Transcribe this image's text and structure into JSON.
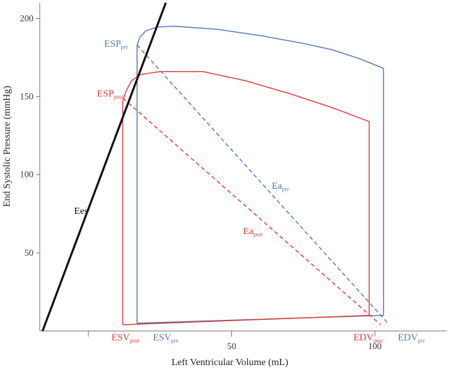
{
  "chart_data": {
    "type": "line",
    "title": "",
    "xlabel": "Left Ventricular Volume (mL)",
    "ylabel": "End Systolic Pressure (mmHg)",
    "xlim": [
      -17,
      125
    ],
    "ylim": [
      0,
      210
    ],
    "xticks": [
      0,
      50,
      100
    ],
    "xtick_labels": [
      "",
      "50",
      "100"
    ],
    "yticks": [
      50,
      100,
      150,
      200
    ],
    "ytick_labels": [
      "50",
      "100",
      "150",
      "200"
    ],
    "grid": false,
    "legend": "none",
    "colors": {
      "pre": "#5577b3",
      "post": "#dd3a3a",
      "ees": "#111111",
      "axis": "#777777"
    },
    "series": [
      {
        "name": "pre",
        "color": "#5577b3",
        "style": "solid",
        "points": [
          [
            17,
            5
          ],
          [
            17,
            183
          ],
          [
            18,
            188
          ],
          [
            20,
            192
          ],
          [
            24,
            194.5
          ],
          [
            30,
            195
          ],
          [
            45,
            193
          ],
          [
            60,
            189
          ],
          [
            75,
            184
          ],
          [
            85,
            180
          ],
          [
            95,
            174
          ],
          [
            103,
            168
          ],
          [
            103,
            166
          ],
          [
            103,
            10
          ],
          [
            17,
            5
          ]
        ]
      },
      {
        "name": "post",
        "color": "#dd3a3a",
        "style": "solid",
        "points": [
          [
            12,
            4
          ],
          [
            12,
            147
          ],
          [
            13,
            153
          ],
          [
            15,
            160
          ],
          [
            18,
            164
          ],
          [
            25,
            166
          ],
          [
            40,
            166
          ],
          [
            55,
            160
          ],
          [
            70,
            152
          ],
          [
            85,
            143
          ],
          [
            98,
            134
          ],
          [
            98,
            132
          ],
          [
            98,
            10
          ],
          [
            12,
            4
          ]
        ]
      },
      {
        "name": "Eapre",
        "color": "#5577b3",
        "style": "dashed",
        "points": [
          [
            17,
            183
          ],
          [
            105,
            4
          ]
        ]
      },
      {
        "name": "Eapost",
        "color": "#dd3a3a",
        "style": "dashed",
        "points": [
          [
            12,
            149
          ],
          [
            102,
            4
          ]
        ]
      },
      {
        "name": "Ees",
        "color": "#111111",
        "style": "solid",
        "points": [
          [
            -16,
            0
          ],
          [
            27,
            210
          ]
        ]
      }
    ],
    "annotations": [
      {
        "text": "ESP",
        "sub": "pre",
        "color": "#5577b3",
        "x": 5.5,
        "y": 182
      },
      {
        "text": "ESP",
        "sub": "post",
        "color": "#dd3a3a",
        "x": 3,
        "y": 150
      },
      {
        "text": "Ees",
        "sub": "",
        "color": "#111111",
        "x": -5,
        "y": 75
      },
      {
        "text": "Ea",
        "sub": "pre",
        "color": "#5577b3",
        "x": 64,
        "y": 91
      },
      {
        "text": "Ea",
        "sub": "post",
        "color": "#dd3a3a",
        "x": 54,
        "y": 62
      },
      {
        "text": "ESV",
        "sub": "post",
        "color": "#dd3a3a",
        "x": 8,
        "y": -6
      },
      {
        "text": "ESV",
        "sub": "pre",
        "color": "#5577b3",
        "x": 22.5,
        "y": -6
      },
      {
        "text": "EDV",
        "sub": "post",
        "color": "#dd3a3a",
        "x": 92.5,
        "y": -6
      },
      {
        "text": "EDV",
        "sub": "pre",
        "color": "#5577b3",
        "x": 108,
        "y": -6
      }
    ]
  }
}
